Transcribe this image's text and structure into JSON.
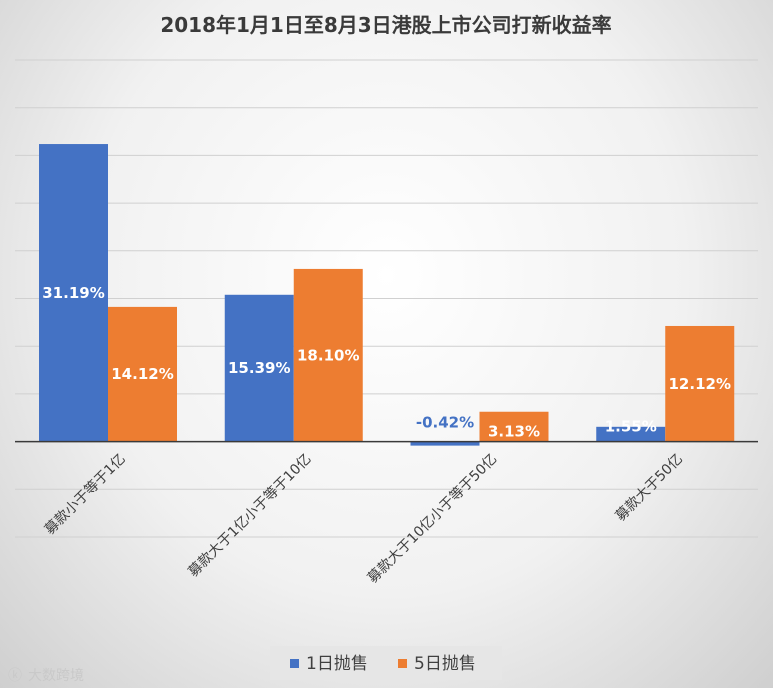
{
  "watermark": "大数跨境",
  "chart_data": {
    "type": "bar",
    "title": "2018年1月1日至8月3日港股上市公司打新收益率",
    "xlabel": "",
    "ylabel": "",
    "ylim": [
      -0.1,
      0.4
    ],
    "grid": true,
    "legend_position": "bottom",
    "categories": [
      "募款小于等于1亿",
      "募款大于1亿小于等于10亿",
      "募款大于10亿小于等于50亿",
      "募款大于50亿"
    ],
    "series": [
      {
        "name": "1日抛售",
        "color": "#4472c4",
        "values": [
          0.3119,
          0.1539,
          -0.0042,
          0.0155
        ],
        "labels": [
          "31.19%",
          "15.39%",
          "-0.42%",
          "1.55%"
        ]
      },
      {
        "name": "5日抛售",
        "color": "#ed7d31",
        "values": [
          0.1412,
          0.181,
          0.0313,
          0.1212
        ],
        "labels": [
          "14.12%",
          "18.10%",
          "3.13%",
          "12.12%"
        ]
      }
    ]
  }
}
